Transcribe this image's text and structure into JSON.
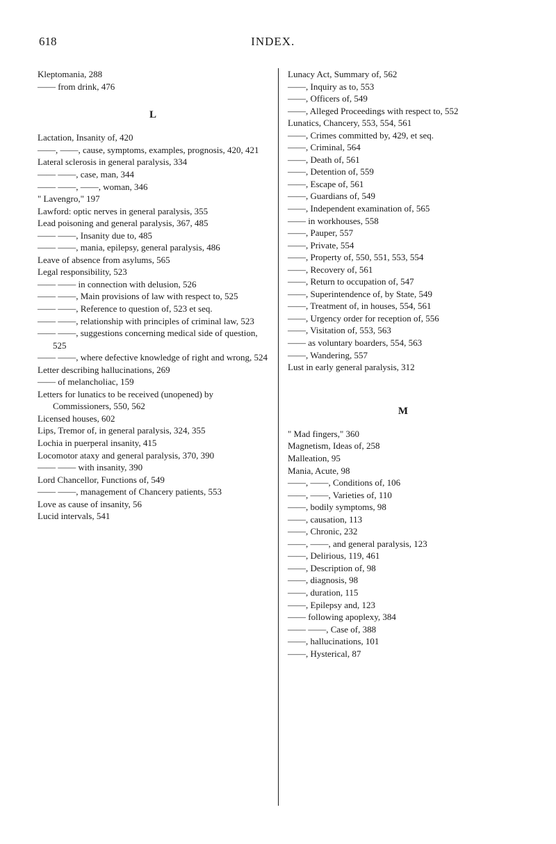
{
  "header": {
    "page": "618",
    "title": "INDEX."
  },
  "left": {
    "entries_top": [
      "Kleptomania, 288",
      "—— from drink, 476"
    ],
    "section_letter": "L",
    "entries_main": [
      "Lactation, Insanity of, 420",
      "——, ——, cause, symptoms, examples, prognosis, 420, 421",
      "Lateral sclerosis in general paralysis, 334",
      "—— ——, case, man, 344",
      "—— ——, ——, woman, 346",
      "\" Lavengro,\" 197",
      "Lawford: optic nerves in general paralysis, 355",
      "Lead poisoning and general paralysis, 367, 485",
      "—— ——, Insanity due to, 485",
      "—— ——, mania, epilepsy, general paralysis, 486",
      "Leave of absence from asylums, 565",
      "Legal responsibility, 523",
      "—— —— in connection with delusion, 526",
      "—— ——, Main provisions of law with respect to, 525",
      "—— ——, Reference to question of, 523 et seq.",
      "—— ——, relationship with principles of criminal law, 523",
      "—— ——, suggestions concerning medical side of question, 525",
      "—— ——, where defective knowledge of right and wrong, 524",
      "Letter describing hallucinations, 269",
      "—— of melancholiac, 159",
      "Letters for lunatics to be received (unopened) by Commissioners, 550, 562",
      "Licensed houses, 602",
      "Lips, Tremor of, in general paralysis, 324, 355",
      "Lochia in puerperal insanity, 415",
      "Locomotor ataxy and general paralysis, 370, 390",
      "—— —— with insanity, 390",
      "Lord Chancellor, Functions of, 549",
      "—— ——, management of Chancery patients, 553",
      "Love as cause of insanity, 56",
      "Lucid intervals, 541"
    ]
  },
  "right": {
    "entries_top": [
      "Lunacy Act, Summary of, 562",
      "——, Inquiry as to, 553",
      "——, Officers of, 549",
      "——, Alleged Proceedings with respect to, 552",
      "Lunatics, Chancery, 553, 554, 561",
      "——, Crimes committed by, 429, et seq.",
      "——, Criminal, 564",
      "——, Death of, 561",
      "——, Detention of, 559",
      "——, Escape of, 561",
      "——, Guardians of, 549",
      "——, Independent examination of, 565",
      "—— in workhouses, 558",
      "——, Pauper, 557",
      "——, Private, 554",
      "——, Property of, 550, 551, 553, 554",
      "——, Recovery of, 561",
      "——, Return to occupation of, 547",
      "——, Superintendence of, by State, 549",
      "——, Treatment of, in houses, 554, 561",
      "——, Urgency order for reception of, 556",
      "——, Visitation of, 553, 563",
      "—— as voluntary boarders, 554, 563",
      "——, Wandering, 557",
      "Lust in early general paralysis, 312"
    ],
    "section_letter": "M",
    "entries_main": [
      "\" Mad fingers,\" 360",
      "Magnetism, Ideas of, 258",
      "Malleation, 95",
      "Mania, Acute, 98",
      "——, ——, Conditions of, 106",
      "——, ——, Varieties of, 110",
      "——, bodily symptoms, 98",
      "——, causation, 113",
      "——, Chronic, 232",
      "——, ——, and general paralysis, 123",
      "——, Delirious, 119, 461",
      "——, Description of, 98",
      "——, diagnosis, 98",
      "——, duration, 115",
      "——, Epilepsy and, 123",
      "—— following apoplexy, 384",
      "—— ——, Case of, 388",
      "——, hallucinations, 101",
      "——, Hysterical, 87"
    ]
  }
}
